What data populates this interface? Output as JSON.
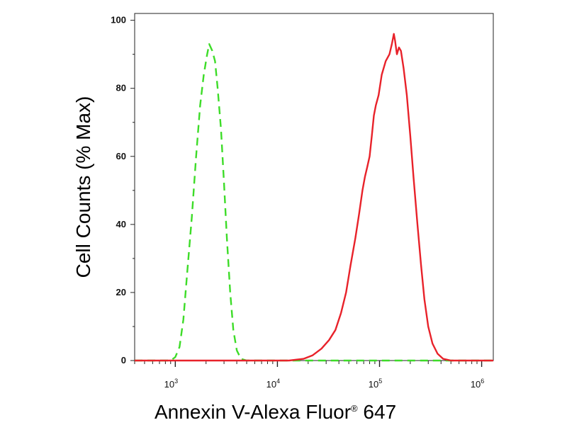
{
  "chart_data": {
    "type": "line",
    "xlabel_main": "Annexin V-Alexa Fluor",
    "xlabel_mark": "®",
    "xlabel_tail": " 647",
    "ylabel": "Cell Counts (% Max)",
    "x_scale": "log",
    "xlim": [
      400,
      1300000
    ],
    "ylim": [
      0,
      102
    ],
    "y_ticks": [
      {
        "value": 0,
        "label": "0"
      },
      {
        "value": 20,
        "label": "20"
      },
      {
        "value": 40,
        "label": "40"
      },
      {
        "value": 60,
        "label": "60"
      },
      {
        "value": 80,
        "label": "80"
      },
      {
        "value": 100,
        "label": "100"
      }
    ],
    "x_ticks": [
      {
        "value": 1000,
        "base": "10",
        "exp": "3"
      },
      {
        "value": 10000,
        "base": "10",
        "exp": "4"
      },
      {
        "value": 100000,
        "base": "10",
        "exp": "5"
      },
      {
        "value": 1000000,
        "base": "10",
        "exp": "6"
      }
    ],
    "grid": false,
    "series": [
      {
        "color": "#3ddc28",
        "style": "dashed",
        "points": [
          [
            400,
            0
          ],
          [
            900,
            0
          ],
          [
            1000,
            1
          ],
          [
            1100,
            4
          ],
          [
            1200,
            12
          ],
          [
            1300,
            25
          ],
          [
            1450,
            42
          ],
          [
            1600,
            60
          ],
          [
            1750,
            75
          ],
          [
            1900,
            84
          ],
          [
            2050,
            90
          ],
          [
            2150,
            93
          ],
          [
            2300,
            91
          ],
          [
            2450,
            88
          ],
          [
            2600,
            80
          ],
          [
            2800,
            68
          ],
          [
            3000,
            52
          ],
          [
            3200,
            36
          ],
          [
            3450,
            20
          ],
          [
            3700,
            9
          ],
          [
            4000,
            3
          ],
          [
            4400,
            0.5
          ],
          [
            5000,
            0
          ],
          [
            1300000,
            0
          ]
        ]
      },
      {
        "color": "#e8222a",
        "style": "solid",
        "points": [
          [
            400,
            0
          ],
          [
            13000,
            0
          ],
          [
            18000,
            0.5
          ],
          [
            22000,
            1.5
          ],
          [
            27000,
            3.5
          ],
          [
            32000,
            6
          ],
          [
            37000,
            9
          ],
          [
            42000,
            14
          ],
          [
            47000,
            20
          ],
          [
            52000,
            28
          ],
          [
            58000,
            36
          ],
          [
            63000,
            43
          ],
          [
            68000,
            50
          ],
          [
            72000,
            54
          ],
          [
            76000,
            57
          ],
          [
            80000,
            60
          ],
          [
            84000,
            66
          ],
          [
            88000,
            72
          ],
          [
            92000,
            75
          ],
          [
            98000,
            78
          ],
          [
            105000,
            84
          ],
          [
            115000,
            88
          ],
          [
            125000,
            90
          ],
          [
            132000,
            93
          ],
          [
            138000,
            96
          ],
          [
            142000,
            94
          ],
          [
            148000,
            90
          ],
          [
            155000,
            92
          ],
          [
            162000,
            91
          ],
          [
            172000,
            86
          ],
          [
            185000,
            78
          ],
          [
            200000,
            66
          ],
          [
            215000,
            54
          ],
          [
            235000,
            40
          ],
          [
            255000,
            28
          ],
          [
            275000,
            18
          ],
          [
            300000,
            10
          ],
          [
            330000,
            5
          ],
          [
            370000,
            2
          ],
          [
            420000,
            0.5
          ],
          [
            500000,
            0
          ],
          [
            1300000,
            0
          ]
        ]
      }
    ]
  }
}
